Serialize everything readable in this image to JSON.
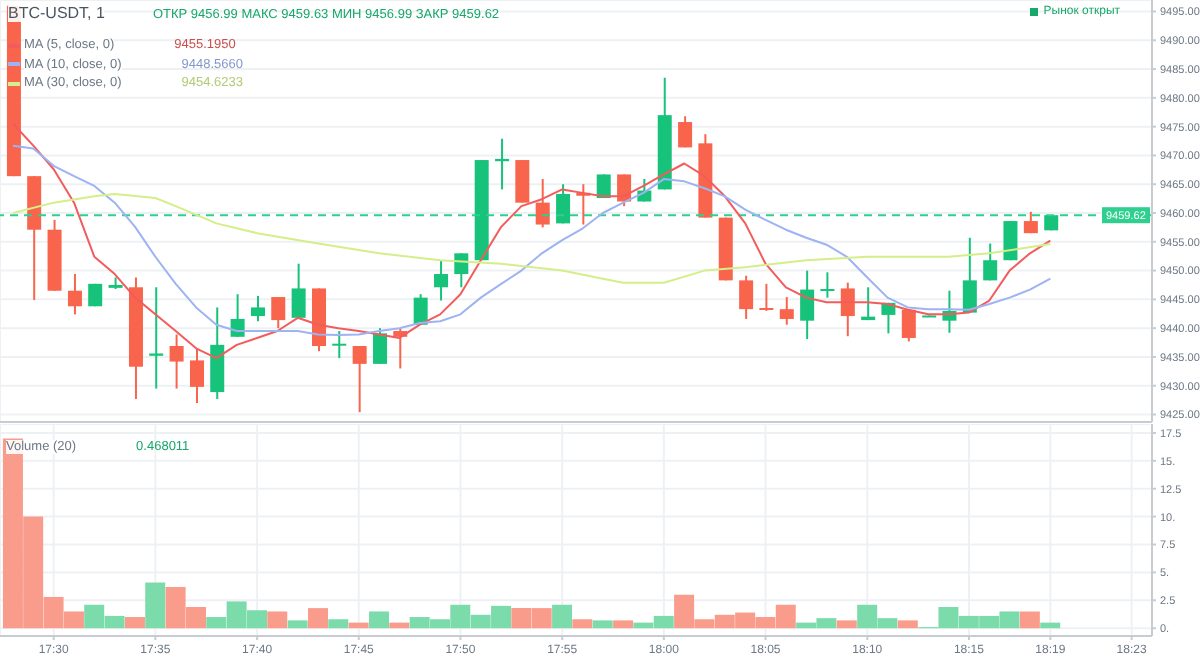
{
  "chart_data": [
    {
      "type": "candlestick",
      "title": "BTC-USDT, 1",
      "annotations": [
        "ОТКР 9456.99 МАКС 9459.63 МИН 9456.99 ЗАКР 9459.62",
        "9455.1950",
        "9448.5660",
        "9454.6233",
        "Рынок открыт"
      ],
      "x": [
        17.4667,
        17.4833,
        17.5,
        17.5167,
        17.5333,
        17.55,
        17.5667,
        17.5833,
        17.6,
        17.6167,
        17.6333,
        17.65,
        17.6667,
        17.6833,
        17.7,
        17.7167,
        17.7333,
        17.75,
        17.7667,
        17.7833,
        17.8,
        17.8167,
        17.8333,
        17.85,
        17.8667,
        17.8833,
        17.9,
        17.9167,
        17.9333,
        17.95,
        17.9667,
        17.9833,
        18,
        18.0167,
        18.0333,
        18.05,
        18.0667,
        18.0833,
        18.1,
        18.1167,
        18.1333,
        18.15,
        18.1667,
        18.1833,
        18.2,
        18.2167,
        18.2333,
        18.25,
        18.2667,
        18.2833,
        18.3,
        18.3167
      ],
      "ohlc": [
        [
          9496,
          9496,
          9466.4,
          9466.4
        ],
        [
          9466.4,
          9466.4,
          9444.9,
          9457.1
        ],
        [
          9457.1,
          9458.8,
          9446.5,
          9446.5
        ],
        [
          9446.5,
          9449.4,
          9442.4,
          9443.8
        ],
        [
          9443.8,
          9447.7,
          9443.8,
          9447.7
        ],
        [
          9447,
          9448.8,
          9446.8,
          9447.5
        ],
        [
          9447.1,
          9448.8,
          9427.7,
          9433.3
        ],
        [
          9435.2,
          9447.1,
          9429.5,
          9435.6
        ],
        [
          9436.9,
          9438.9,
          9429.5,
          9434.2
        ],
        [
          9434.4,
          9436.5,
          9427,
          9429.8
        ],
        [
          9428.9,
          9443.6,
          9427.7,
          9437.1
        ],
        [
          9438.5,
          9445.9,
          9438.5,
          9441.6
        ],
        [
          9442.1,
          9445.6,
          9441.2,
          9443.6
        ],
        [
          9445.4,
          9445.4,
          9440,
          9441.4
        ],
        [
          9441.8,
          9451.2,
          9441.8,
          9446.9
        ],
        [
          9446.9,
          9446.9,
          9436,
          9436.9
        ],
        [
          9437,
          9439.5,
          9434.8,
          9437.3
        ],
        [
          9436.9,
          9436.9,
          9425.4,
          9433.8
        ],
        [
          9433.8,
          9440,
          9433.8,
          9439.1
        ],
        [
          9439.5,
          9440,
          9433,
          9438.5
        ],
        [
          9440.6,
          9445.9,
          9440.6,
          9445.3
        ],
        [
          9447.1,
          9451.8,
          9444.8,
          9449.4
        ],
        [
          9449.4,
          9453,
          9447.1,
          9453
        ],
        [
          9451.8,
          9469.2,
          9451.8,
          9469.2
        ],
        [
          9469,
          9472.9,
          9464.1,
          9469.4
        ],
        [
          9469.2,
          9469.2,
          9461.8,
          9461.8
        ],
        [
          9461.8,
          9465.9,
          9457.5,
          9458
        ],
        [
          9458.2,
          9465,
          9458.2,
          9463.3
        ],
        [
          9463.5,
          9465,
          9458,
          9463
        ],
        [
          9462.6,
          9466.7,
          9462.6,
          9466.7
        ],
        [
          9466.7,
          9466.7,
          9461.2,
          9462
        ],
        [
          9462,
          9465.9,
          9462,
          9463.9
        ],
        [
          9464.1,
          9483.5,
          9464.1,
          9477
        ],
        [
          9475.8,
          9476.8,
          9471.4,
          9471.4
        ],
        [
          9472.1,
          9473.7,
          9459.2,
          9459.2
        ],
        [
          9459.2,
          9459.2,
          9448.3,
          9448.3
        ],
        [
          9448.3,
          9449.1,
          9441.6,
          9443.3
        ],
        [
          9443.5,
          9447.7,
          9443,
          9443.2
        ],
        [
          9443.3,
          9445.4,
          9440.6,
          9441.6
        ],
        [
          9441.3,
          9450,
          9438.1,
          9446.7
        ],
        [
          9446.6,
          9449.7,
          9445.3,
          9446.8
        ],
        [
          9446.9,
          9447.9,
          9438.6,
          9442.1
        ],
        [
          9441.4,
          9447.1,
          9441.4,
          9442
        ],
        [
          9442.3,
          9444.4,
          9439.1,
          9444.4
        ],
        [
          9443.2,
          9443.2,
          9437.7,
          9438.3
        ],
        [
          9442.1,
          9442.2,
          9442.1,
          9442.2
        ],
        [
          9441.3,
          9446.5,
          9439.2,
          9443
        ],
        [
          9442.7,
          9455.7,
          9442.7,
          9448.3
        ],
        [
          9448.3,
          9454.7,
          9448.3,
          9451.8
        ],
        [
          9451.8,
          9458.6,
          9451.8,
          9458.6
        ],
        [
          9458.6,
          9460.2,
          9456.5,
          9456.5
        ],
        [
          9456.99,
          9459.63,
          9456.99,
          9459.62
        ]
      ],
      "colors": [
        "#f8644c",
        "#f8644c",
        "#f8644c",
        "#f8644c",
        "#17c27a",
        "#17c27a",
        "#f8644c",
        "#17c27a",
        "#f8644c",
        "#f8644c",
        "#17c27a",
        "#17c27a",
        "#17c27a",
        "#f8644c",
        "#17c27a",
        "#f8644c",
        "#17c27a",
        "#f8644c",
        "#17c27a",
        "#f8644c",
        "#17c27a",
        "#17c27a",
        "#17c27a",
        "#17c27a",
        "#17c27a",
        "#f8644c",
        "#f8644c",
        "#17c27a",
        "#f8644c",
        "#17c27a",
        "#f8644c",
        "#17c27a",
        "#17c27a",
        "#f8644c",
        "#f8644c",
        "#f8644c",
        "#f8644c",
        "#f8644c",
        "#f8644c",
        "#17c27a",
        "#17c27a",
        "#f8644c",
        "#17c27a",
        "#17c27a",
        "#f8644c",
        "#17c27a",
        "#17c27a",
        "#17c27a",
        "#17c27a",
        "#17c27a",
        "#f8644c",
        "#17c27a"
      ],
      "series": [
        {
          "type": "line",
          "name": "MA (5, close, 0)",
          "color": "#f25c5c",
          "values": [
            9475.5,
            9471.7,
            9467.6,
            9461.8,
            9452.4,
            9449.4,
            9445.3,
            9442.4,
            9439.5,
            9436.5,
            9434.8,
            9437.1,
            9438.3,
            9439.5,
            9441.8,
            9440.6,
            9440,
            9439.5,
            9438.9,
            9438.3,
            9440.6,
            9442.4,
            9445.9,
            9451.8,
            9457.6,
            9461.2,
            9462.4,
            9464.1,
            9463.5,
            9462.9,
            9462.9,
            9464.7,
            9466.7,
            9468.6,
            9466.4,
            9462.9,
            9458.2,
            9451.2,
            9447.1,
            9445.3,
            9444.5,
            9444.5,
            9444.5,
            9444.2,
            9443.2,
            9442.4,
            9442.4,
            9442.7,
            9444.8,
            9450,
            9453,
            9455.2
          ]
        },
        {
          "type": "line",
          "name": "MA (10, close, 0)",
          "color": "#9db3f2",
          "values": [
            9471.7,
            9471.2,
            9468.2,
            9466.4,
            9464.7,
            9461.8,
            9457.6,
            9452.4,
            9447.7,
            9443.6,
            9440.6,
            9439.5,
            9439.5,
            9439.5,
            9439.5,
            9438.9,
            9438.8,
            9438.9,
            9439.5,
            9440,
            9440.9,
            9441.2,
            9442.4,
            9445.3,
            9447.7,
            9450,
            9453,
            9455.3,
            9457.3,
            9460,
            9461.8,
            9463.5,
            9465.9,
            9465.5,
            9464.3,
            9462.9,
            9460.6,
            9458.8,
            9457.1,
            9455.7,
            9454.5,
            9452.4,
            9448.8,
            9445.3,
            9443.6,
            9443.3,
            9443.3,
            9443.2,
            9444.2,
            9445.3,
            9446.7,
            9448.6
          ]
        },
        {
          "type": "line",
          "name": "MA (30, close, 0)",
          "color": "#d4ee8a",
          "x": [
            17.4667,
            17.5,
            17.5333,
            17.55,
            17.5833,
            17.6,
            17.6333,
            17.6667,
            17.7167,
            17.7667,
            17.8167,
            17.8667,
            17.9167,
            17.95,
            17.9667,
            18,
            18.0333,
            18.0667,
            18.1167,
            18.1667,
            18.2333,
            18.2667,
            18.3167
          ],
          "values": [
            9460,
            9461.8,
            9462.9,
            9463.3,
            9462.6,
            9461.2,
            9458.2,
            9456.5,
            9454.7,
            9453,
            9451.8,
            9451.2,
            9450,
            9448.6,
            9447.9,
            9447.9,
            9450,
            9450.6,
            9451.8,
            9452.4,
            9452.4,
            9453,
            9454.6
          ]
        }
      ],
      "xlim": [
        17.456,
        18.4
      ],
      "yticks": [
        {
          "value": 9425,
          "label": "9425.00"
        },
        {
          "value": 9430,
          "label": "9430.00"
        },
        {
          "value": 9435,
          "label": "9435.00"
        },
        {
          "value": 9440,
          "label": "9440.00"
        },
        {
          "value": 9445,
          "label": "9445.00"
        },
        {
          "value": 9450,
          "label": "9450.00"
        },
        {
          "value": 9455,
          "label": "9455.00"
        },
        {
          "value": 9460,
          "label": "9460.00"
        },
        {
          "value": 9465,
          "label": "9465.00"
        },
        {
          "value": 9470,
          "label": "9470.00"
        },
        {
          "value": 9475,
          "label": "9475.00"
        },
        {
          "value": 9480,
          "label": "9480.00"
        },
        {
          "value": 9485,
          "label": "9485.00"
        },
        {
          "value": 9490,
          "label": "9490.00"
        },
        {
          "value": 9495,
          "label": "9495.00"
        }
      ],
      "ylim": [
        9423.7,
        9497
      ],
      "ref_lines": [
        {
          "axis": "y",
          "value": 9459.62,
          "label": "9459.62",
          "color": "#2fcf8f",
          "line_style": "dashed"
        }
      ],
      "grid": true,
      "legend": "top left",
      "marker": "none",
      "tick_labels": "y"
    },
    {
      "type": "bar",
      "title": "Volume (20)",
      "annotations": [
        "0.468011"
      ],
      "x": [
        17.4667,
        17.4833,
        17.5,
        17.5167,
        17.5333,
        17.55,
        17.5667,
        17.5833,
        17.6,
        17.6167,
        17.6333,
        17.65,
        17.6667,
        17.6833,
        17.7,
        17.7167,
        17.7333,
        17.75,
        17.7667,
        17.7833,
        17.8,
        17.8167,
        17.8333,
        17.85,
        17.8667,
        17.8833,
        17.9,
        17.9167,
        17.9333,
        17.95,
        17.9667,
        17.9833,
        18,
        18.0167,
        18.0333,
        18.05,
        18.0667,
        18.0833,
        18.1,
        18.1167,
        18.1333,
        18.15,
        18.1667,
        18.1833,
        18.2,
        18.2167,
        18.2333,
        18.25,
        18.2667,
        18.2833,
        18.3,
        18.3167
      ],
      "values": [
        17,
        10,
        2.8,
        1.5,
        2.1,
        1.1,
        1,
        4.1,
        3.7,
        1.9,
        1,
        2.4,
        1.6,
        1.5,
        0.7,
        1.8,
        0.8,
        0.5,
        1.5,
        0.5,
        1,
        0.8,
        2.1,
        1.2,
        2,
        1.8,
        1.8,
        2.1,
        0.8,
        0.7,
        0.7,
        0.5,
        1.1,
        3,
        0.8,
        1.2,
        1.4,
        1,
        2.1,
        0.5,
        0.9,
        0.7,
        2.1,
        0.9,
        0.7,
        0.1,
        1.9,
        1.1,
        1.1,
        1.5,
        1.5,
        0.5
      ],
      "colors": [
        "#fa9c8c",
        "#fa9c8c",
        "#fa9c8c",
        "#fa9c8c",
        "#7cdbab",
        "#7cdbab",
        "#fa9c8c",
        "#7cdbab",
        "#fa9c8c",
        "#fa9c8c",
        "#7cdbab",
        "#7cdbab",
        "#7cdbab",
        "#fa9c8c",
        "#7cdbab",
        "#fa9c8c",
        "#7cdbab",
        "#fa9c8c",
        "#7cdbab",
        "#fa9c8c",
        "#7cdbab",
        "#7cdbab",
        "#7cdbab",
        "#7cdbab",
        "#7cdbab",
        "#fa9c8c",
        "#fa9c8c",
        "#7cdbab",
        "#fa9c8c",
        "#7cdbab",
        "#fa9c8c",
        "#7cdbab",
        "#7cdbab",
        "#fa9c8c",
        "#fa9c8c",
        "#fa9c8c",
        "#fa9c8c",
        "#fa9c8c",
        "#fa9c8c",
        "#7cdbab",
        "#7cdbab",
        "#fa9c8c",
        "#7cdbab",
        "#7cdbab",
        "#fa9c8c",
        "#7cdbab",
        "#7cdbab",
        "#7cdbab",
        "#7cdbab",
        "#7cdbab",
        "#fa9c8c",
        "#7cdbab"
      ],
      "xlim": [
        17.456,
        18.4
      ],
      "xticks": [
        {
          "value": 17.5,
          "label": "17:30"
        },
        {
          "value": 17.5833,
          "label": "17:35"
        },
        {
          "value": 17.6667,
          "label": "17:40"
        },
        {
          "value": 17.75,
          "label": "17:45"
        },
        {
          "value": 17.8333,
          "label": "17:50"
        },
        {
          "value": 17.9167,
          "label": "17:55"
        },
        {
          "value": 18,
          "label": "18:00"
        },
        {
          "value": 18.0833,
          "label": "18:05"
        },
        {
          "value": 18.1667,
          "label": "18:10"
        },
        {
          "value": 18.25,
          "label": "18:15"
        },
        {
          "value": 18.3167,
          "label": "18:19"
        },
        {
          "value": 18.3833,
          "label": "18:23"
        }
      ],
      "ylim": [
        -0.7,
        18.3
      ],
      "yticks": [
        {
          "value": 0,
          "label": "0."
        },
        2.5,
        {
          "value": 5,
          "label": "5."
        },
        7.5,
        {
          "value": 10,
          "label": "10."
        },
        12.5,
        {
          "value": 15,
          "label": "15."
        },
        17.5
      ],
      "grid": true
    }
  ]
}
